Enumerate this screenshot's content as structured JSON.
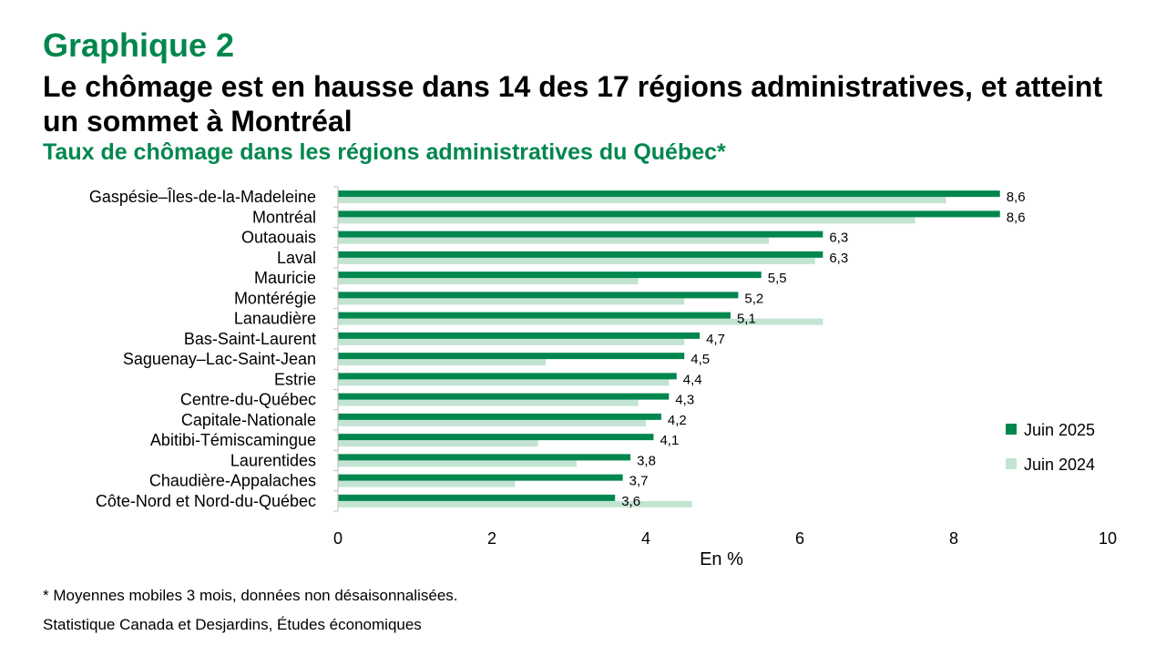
{
  "header": {
    "graph_number": "Graphique 2",
    "headline": "Le chômage est en hausse dans 14 des 17 régions administratives, et atteint un sommet à Montréal",
    "subtitle": "Taux de chômage dans les régions administratives du Québec*"
  },
  "footnotes": {
    "note": "* Moyennes mobiles 3 mois, données non désaisonnalisées.",
    "source": "Statistique Canada et Desjardins, Études économiques"
  },
  "colors": {
    "juin_2025": "#00874e",
    "juin_2024": "#c3e4d2",
    "accent": "#00874e"
  },
  "chart_data": {
    "type": "bar",
    "orientation": "horizontal",
    "categories": [
      "Gaspésie–Îles-de-la-Madeleine",
      "Montréal",
      "Outaouais",
      "Laval",
      "Mauricie",
      "Montérégie",
      "Lanaudière",
      "Bas-Saint-Laurent",
      "Saguenay–Lac-Saint-Jean",
      "Estrie",
      "Centre-du-Québec",
      "Capitale-Nationale",
      "Abitibi-Témiscamingue",
      "Laurentides",
      "Chaudière-Appalaches",
      "Côte-Nord et Nord-du-Québec"
    ],
    "series": [
      {
        "name": "Juin 2025",
        "values": [
          8.6,
          8.6,
          6.3,
          6.3,
          5.5,
          5.2,
          5.1,
          4.7,
          4.5,
          4.4,
          4.3,
          4.2,
          4.1,
          3.8,
          3.7,
          3.6
        ],
        "labels": [
          "8,6",
          "8,6",
          "6,3",
          "6,3",
          "5,5",
          "5,2",
          "5,1",
          "4,7",
          "4,5",
          "4,4",
          "4,3",
          "4,2",
          "4,1",
          "3,8",
          "3,7",
          "3,6"
        ]
      },
      {
        "name": "Juin 2024",
        "values": [
          7.9,
          7.5,
          5.6,
          6.2,
          3.9,
          4.5,
          6.3,
          4.5,
          2.7,
          4.3,
          3.9,
          4.0,
          2.6,
          3.1,
          2.3,
          4.6
        ]
      }
    ],
    "xlabel": "En %",
    "ylabel": "",
    "xlim": [
      0,
      10
    ],
    "xticks": [
      0,
      2,
      4,
      6,
      8,
      10
    ],
    "grid": false,
    "legend": "right"
  }
}
